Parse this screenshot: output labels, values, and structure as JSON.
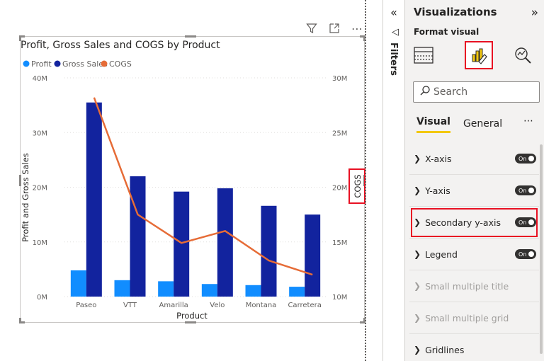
{
  "visual_toolbar": {
    "filter_icon": "filter-icon",
    "focus_icon": "focus-mode-icon",
    "more_label": "⋯"
  },
  "chart_header": {
    "title": "Profit, Gross Sales and COGS by Product"
  },
  "chart_data": {
    "type": "bar",
    "title": "Profit, Gross Sales and COGS by Product",
    "categories": [
      "Paseo",
      "VTT",
      "Amarilla",
      "Velo",
      "Montana",
      "Carretera"
    ],
    "series": [
      {
        "name": "Profit",
        "type": "bar",
        "axis": "primary",
        "color": "#118dff",
        "values": [
          4.8,
          3.0,
          2.8,
          2.3,
          2.1,
          1.8
        ]
      },
      {
        "name": "Gross Sales",
        "type": "bar",
        "axis": "primary",
        "color": "#12239e",
        "values": [
          35.5,
          22.0,
          19.2,
          19.8,
          16.6,
          15.0
        ]
      },
      {
        "name": "COGS",
        "type": "line",
        "axis": "secondary",
        "color": "#e66c37",
        "values": [
          28.2,
          17.5,
          14.9,
          16.0,
          13.3,
          12.0
        ]
      }
    ],
    "xlabel": "Product",
    "ylabel": "Profit and Gross Sales",
    "y2label": "COGS",
    "ylim": [
      0,
      40
    ],
    "y2lim": [
      10,
      30
    ],
    "yticks": [
      "0M",
      "10M",
      "20M",
      "30M",
      "40M"
    ],
    "y2ticks": [
      "10M",
      "15M",
      "20M",
      "25M",
      "30M"
    ],
    "grid": true,
    "legend_position": "top-left"
  },
  "filters_pane": {
    "collapse_label": "«",
    "arrow_label": "◁",
    "label": "Filters"
  },
  "viz_pane": {
    "title": "Visualizations",
    "expand_label": "»",
    "format_label": "Format visual",
    "search_placeholder": "Search",
    "tabs": [
      {
        "label": "Visual",
        "active": true
      },
      {
        "label": "General",
        "active": false
      }
    ],
    "more_label": "⋯",
    "sections": [
      {
        "label": "X-axis",
        "toggle": "On",
        "disabled": false,
        "highlight": false
      },
      {
        "label": "Y-axis",
        "toggle": "On",
        "disabled": false,
        "highlight": false
      },
      {
        "label": "Secondary y-axis",
        "toggle": "On",
        "disabled": false,
        "highlight": true
      },
      {
        "label": "Legend",
        "toggle": "On",
        "disabled": false,
        "highlight": false
      },
      {
        "label": "Small multiple title",
        "toggle": null,
        "disabled": true,
        "highlight": false
      },
      {
        "label": "Small multiple grid",
        "toggle": null,
        "disabled": true,
        "highlight": false
      },
      {
        "label": "Gridlines",
        "toggle": null,
        "disabled": false,
        "highlight": false
      }
    ]
  }
}
